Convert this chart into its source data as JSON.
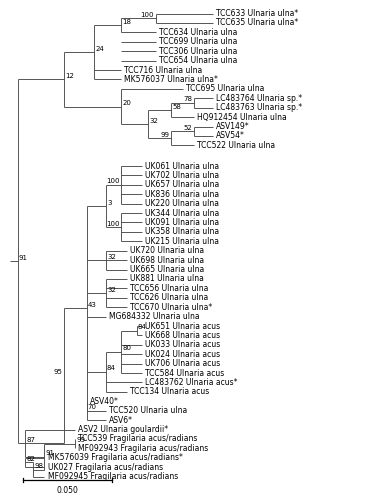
{
  "background_color": "#ffffff",
  "line_color": "#4a4a4a",
  "font_size": 5.5,
  "bootstrap_font_size": 5.0,
  "scale_bar_label": "0.050",
  "taxa_order": [
    "TCC633",
    "TCC635",
    "TCC634",
    "TCC699",
    "TCC306",
    "TCC654",
    "TCC716",
    "MK576037",
    "TCC695",
    "LC483764",
    "LC483763",
    "HQ912454",
    "ASV149",
    "ASV54",
    "TCC522",
    "UK061",
    "UK702",
    "UK657",
    "UK836",
    "UK220",
    "UK344",
    "UK091",
    "UK358",
    "UK215",
    "UK720",
    "UK698",
    "UK665",
    "UK881",
    "TCC656",
    "TCC626",
    "TCC670",
    "MG684332",
    "UK651",
    "UK668",
    "UK033",
    "UK024",
    "UK706",
    "TCC584",
    "LC483762",
    "TCC134",
    "ASV40",
    "TCC520",
    "ASV6",
    "ASV2",
    "TCC539",
    "MF092943",
    "MK576039",
    "UK027",
    "MF092945"
  ],
  "labels": {
    "TCC633": "TCC633 Ulnaria ulna*",
    "TCC635": "TCC635 Ulnaria ulna*",
    "TCC634": "TCC634 Ulnaria ulna",
    "TCC699": "TCC699 Ulnaria ulna",
    "TCC306": "TCC306 Ulnaria ulna",
    "TCC654": "TCC654 Ulnaria ulna",
    "TCC716": "TCC716 Ulnaria ulna",
    "MK576037": "MK576037 Ulnaria ulna*",
    "TCC695": "TCC695 Ulnaria ulna",
    "LC483764": "LC483764 Ulnaria sp.*",
    "LC483763": "LC483763 Ulnaria sp.*",
    "HQ912454": "HQ912454 Ulnaria ulna",
    "ASV149": "ASV149*",
    "ASV54": "ASV54*",
    "TCC522": "TCC522 Ulnaria ulna",
    "UK061": "UK061 Ulnaria ulna",
    "UK702": "UK702 Ulnaria ulna",
    "UK657": "UK657 Ulnaria ulna",
    "UK836": "UK836 Ulnaria ulna",
    "UK220": "UK220 Ulnaria ulna",
    "UK344": "UK344 Ulnaria ulna",
    "UK091": "UK091 Ulnaria ulna",
    "UK358": "UK358 Ulnaria ulna",
    "UK215": "UK215 Ulnaria ulna",
    "UK720": "UK720 Ulnaria ulna",
    "UK698": "UK698 Ulnaria ulna",
    "UK665": "UK665 Ulnaria ulna",
    "UK881": "UK881 Ulnaria ulna",
    "TCC656": "TCC656 Ulnaria ulna",
    "TCC626": "TCC626 Ulnaria ulna",
    "TCC670": "TCC670 Ulnaria ulna*",
    "MG684332": "MG684332 Ulnaria ulna",
    "UK651": "UK651 Ulnaria acus",
    "UK668": "UK668 Ulnaria acus",
    "UK033": "UK033 Ulnaria acus",
    "UK024": "UK024 Ulnaria acus",
    "UK706": "UK706 Ulnaria acus",
    "TCC584": "TCC584 Ulnaria acus",
    "LC483762": "LC483762 Ulnaria acus*",
    "TCC134": "TCC134 Ulnaria acus",
    "ASV40": "ASV40*",
    "TCC520": "TCC520 Ulnaria ulna",
    "ASV6": "ASV6*",
    "ASV2": "ASV2 Ulnaria goulardii*",
    "TCC539": "TCC539 Fragilaria acus/radians",
    "MF092943": "MF092943 Fragilaria acus/radians",
    "MK576039": "MK576039 Fragilaria acus/radians*",
    "UK027": "UK027 Fragilaria acus/radians",
    "MF092945": "MF092945 Fragilaria acus/radians"
  }
}
